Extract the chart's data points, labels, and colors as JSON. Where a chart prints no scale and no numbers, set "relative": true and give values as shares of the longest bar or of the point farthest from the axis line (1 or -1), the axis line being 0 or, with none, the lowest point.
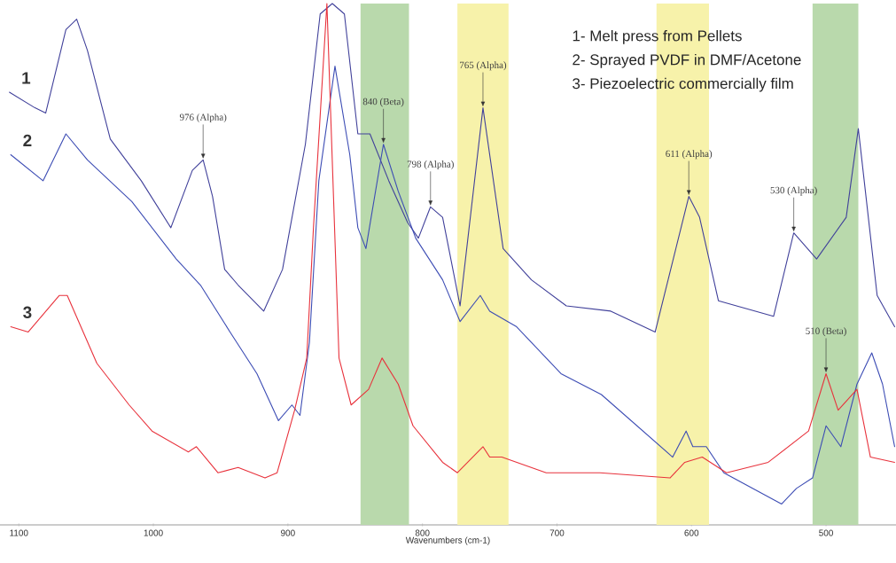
{
  "chart_data": {
    "type": "line",
    "relative": true,
    "xlabel": "Wavenumbers (cm-1)",
    "xlim": [
      1114,
      448
    ],
    "xticks": [
      1100,
      1000,
      900,
      800,
      700,
      600,
      500
    ],
    "marker": "none",
    "line_style": "solid",
    "bands": [
      {
        "axis": "x",
        "from": 846,
        "to": 810,
        "color": "#b9d9ac"
      },
      {
        "axis": "x",
        "from": 774,
        "to": 736,
        "color": "#f7f2aa"
      },
      {
        "axis": "x",
        "from": 626,
        "to": 587,
        "color": "#f7f2aa"
      },
      {
        "axis": "x",
        "from": 510,
        "to": 476,
        "color": "#b9d9ac"
      }
    ],
    "series": [
      {
        "name": "1",
        "color": "#40409a",
        "x": [
          1107,
          1088,
          1080,
          1065,
          1057,
          1049,
          1032,
          1009,
          987,
          971,
          963,
          956,
          947,
          937,
          918,
          904,
          887,
          876,
          867,
          858,
          848,
          839,
          825,
          811,
          803,
          794,
          785,
          772,
          755,
          740,
          719,
          693,
          660,
          627,
          602,
          594,
          580,
          539,
          524,
          507,
          485,
          476,
          462,
          449
        ],
        "values": [
          0.83,
          0.8,
          0.79,
          0.95,
          0.97,
          0.91,
          0.74,
          0.66,
          0.57,
          0.68,
          0.7,
          0.63,
          0.49,
          0.46,
          0.41,
          0.49,
          0.73,
          0.98,
          1,
          0.98,
          0.75,
          0.75,
          0.66,
          0.58,
          0.55,
          0.61,
          0.59,
          0.42,
          0.8,
          0.53,
          0.47,
          0.42,
          0.41,
          0.37,
          0.63,
          0.59,
          0.43,
          0.4,
          0.56,
          0.51,
          0.59,
          0.76,
          0.44,
          0.38
        ]
      },
      {
        "name": "2",
        "color": "#3c4cb4",
        "x": [
          1106,
          1082,
          1065,
          1049,
          1016,
          983,
          965,
          943,
          923,
          907,
          897,
          891,
          884,
          877,
          865,
          854,
          848,
          842,
          829,
          818,
          805,
          785,
          772,
          757,
          750,
          730,
          697,
          667,
          614,
          604,
          599,
          589,
          576,
          533,
          522,
          510,
          500,
          489,
          477,
          466,
          458,
          449
        ],
        "values": [
          0.71,
          0.66,
          0.75,
          0.7,
          0.62,
          0.51,
          0.46,
          0.37,
          0.29,
          0.2,
          0.23,
          0.21,
          0.35,
          0.66,
          0.88,
          0.71,
          0.57,
          0.53,
          0.73,
          0.64,
          0.55,
          0.47,
          0.39,
          0.44,
          0.41,
          0.38,
          0.29,
          0.25,
          0.13,
          0.18,
          0.15,
          0.15,
          0.1,
          0.04,
          0.07,
          0.09,
          0.19,
          0.15,
          0.27,
          0.33,
          0.27,
          0.15
        ]
      },
      {
        "name": "3",
        "color": "#e8323c",
        "x": [
          1106,
          1093,
          1070,
          1064,
          1042,
          1018,
          1001,
          974,
          968,
          952,
          937,
          917,
          908,
          895,
          886,
          881,
          871,
          862,
          853,
          840,
          830,
          818,
          807,
          785,
          774,
          755,
          750,
          741,
          708,
          668,
          616,
          605,
          592,
          574,
          543,
          513,
          500,
          491,
          477,
          467,
          449
        ],
        "values": [
          0.38,
          0.37,
          0.44,
          0.44,
          0.31,
          0.23,
          0.18,
          0.14,
          0.15,
          0.1,
          0.11,
          0.09,
          0.1,
          0.22,
          0.32,
          0.57,
          1,
          0.32,
          0.23,
          0.26,
          0.32,
          0.27,
          0.19,
          0.12,
          0.1,
          0.15,
          0.13,
          0.13,
          0.1,
          0.1,
          0.09,
          0.12,
          0.13,
          0.1,
          0.12,
          0.18,
          0.29,
          0.22,
          0.26,
          0.13,
          0.12
        ]
      }
    ],
    "annotations": [
      "1- Melt press from Pellets",
      "2- Sprayed PVDF in DMF/Acetone",
      "3- Piezoelectric commercially film",
      {
        "text": "976 (Alpha)",
        "x": 963,
        "y": 0.7
      },
      {
        "text": "840 (Beta)",
        "x": 829,
        "y": 0.73
      },
      {
        "text": "798 (Alpha)",
        "x": 794,
        "y": 0.61
      },
      {
        "text": "765 (Alpha)",
        "x": 755,
        "y": 0.8
      },
      {
        "text": "611 (Alpha)",
        "x": 602,
        "y": 0.63
      },
      {
        "text": "530 (Alpha)",
        "x": 524,
        "y": 0.56
      },
      {
        "text": "510 (Beta)",
        "x": 500,
        "y": 0.29
      }
    ]
  }
}
